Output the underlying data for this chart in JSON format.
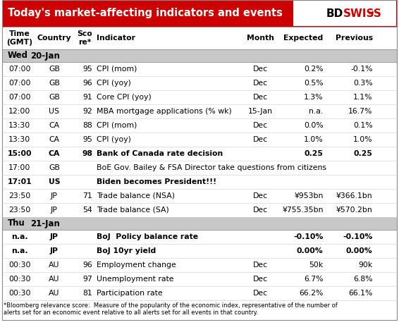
{
  "title": "Today's market-affecting indicators and events",
  "header_bg": "#cc0000",
  "header_text_color": "#ffffff",
  "section_bg": "#c8c8c8",
  "col_headers": [
    "Time\n(GMT)",
    "Country",
    "Sco\nre*",
    "Indicator",
    "Month",
    "Expected",
    "Previous"
  ],
  "col_aligns": [
    "center",
    "center",
    "right",
    "left",
    "center",
    "right",
    "right"
  ],
  "col_header_bold": [
    false,
    false,
    false,
    false,
    false,
    false,
    false
  ],
  "rows": [
    {
      "type": "section",
      "label": "Wed",
      "date": "20-Jan"
    },
    {
      "type": "data",
      "time": "07:00",
      "country": "GB",
      "score": "95",
      "indicator": "CPI (mom)",
      "month": "Dec",
      "expected": "0.2%",
      "previous": "-0.1%",
      "bold": false
    },
    {
      "type": "data",
      "time": "07:00",
      "country": "GB",
      "score": "96",
      "indicator": "CPI (yoy)",
      "month": "Dec",
      "expected": "0.5%",
      "previous": "0.3%",
      "bold": false
    },
    {
      "type": "data",
      "time": "07:00",
      "country": "GB",
      "score": "91",
      "indicator": "Core CPI (yoy)",
      "month": "Dec",
      "expected": "1.3%",
      "previous": "1.1%",
      "bold": false
    },
    {
      "type": "data",
      "time": "12:00",
      "country": "US",
      "score": "92",
      "indicator": "MBA mortgage applications (% wk)",
      "month": "15-Jan",
      "expected": "n.a.",
      "previous": "16.7%",
      "bold": false
    },
    {
      "type": "data",
      "time": "13:30",
      "country": "CA",
      "score": "88",
      "indicator": "CPI (mom)",
      "month": "Dec",
      "expected": "0.0%",
      "previous": "0.1%",
      "bold": false
    },
    {
      "type": "data",
      "time": "13:30",
      "country": "CA",
      "score": "95",
      "indicator": "CPI (yoy)",
      "month": "Dec",
      "expected": "1.0%",
      "previous": "1.0%",
      "bold": false
    },
    {
      "type": "data",
      "time": "15:00",
      "country": "CA",
      "score": "98",
      "indicator": "Bank of Canada rate decision",
      "month": "",
      "expected": "0.25",
      "previous": "0.25",
      "bold": true
    },
    {
      "type": "data",
      "time": "17:00",
      "country": "GB",
      "score": "",
      "indicator": "BoE Gov. Bailey & FSA Director take questions from citizens",
      "month": "",
      "expected": "",
      "previous": "",
      "bold": false
    },
    {
      "type": "data",
      "time": "17:01",
      "country": "US",
      "score": "",
      "indicator": "Biden becomes President!!!",
      "month": "",
      "expected": "",
      "previous": "",
      "bold": true
    },
    {
      "type": "data",
      "time": "23:50",
      "country": "JP",
      "score": "71",
      "indicator": "Trade balance (NSA)",
      "month": "Dec",
      "expected": "¥953bn",
      "previous": "¥366.1bn",
      "bold": false
    },
    {
      "type": "data",
      "time": "23:50",
      "country": "JP",
      "score": "54",
      "indicator": "Trade balance (SA)",
      "month": "Dec",
      "expected": "¥755.35bn",
      "previous": "¥570.2bn",
      "bold": false
    },
    {
      "type": "section",
      "label": "Thu",
      "date": "21-Jan"
    },
    {
      "type": "data",
      "time": "n.a.",
      "country": "JP",
      "score": "",
      "indicator": "BoJ  Policy balance rate",
      "month": "",
      "expected": "-0.10%",
      "previous": "-0.10%",
      "bold": true
    },
    {
      "type": "data",
      "time": "n.a.",
      "country": "JP",
      "score": "",
      "indicator": "BoJ 10yr yield",
      "month": "",
      "expected": "0.00%",
      "previous": "0.00%",
      "bold": true
    },
    {
      "type": "data",
      "time": "00:30",
      "country": "AU",
      "score": "96",
      "indicator": "Employment change",
      "month": "Dec",
      "expected": "50k",
      "previous": "90k",
      "bold": false
    },
    {
      "type": "data",
      "time": "00:30",
      "country": "AU",
      "score": "97",
      "indicator": "Unemployment rate",
      "month": "Dec",
      "expected": "6.7%",
      "previous": "6.8%",
      "bold": false
    },
    {
      "type": "data",
      "time": "00:30",
      "country": "AU",
      "score": "81",
      "indicator": "Participation rate",
      "month": "Dec",
      "expected": "66.2%",
      "previous": "66.1%",
      "bold": false
    }
  ],
  "footnote": "*Bloomberg relevance score:  Measure of the popularity of the economic index, representative of the number of\nalerts set for an economic event relative to all alerts set for all events in that country.",
  "footnote_fontsize": 6.0,
  "data_fontsize": 7.8,
  "header_fontsize": 7.8,
  "section_fontsize": 8.5,
  "title_fontsize": 10.5
}
